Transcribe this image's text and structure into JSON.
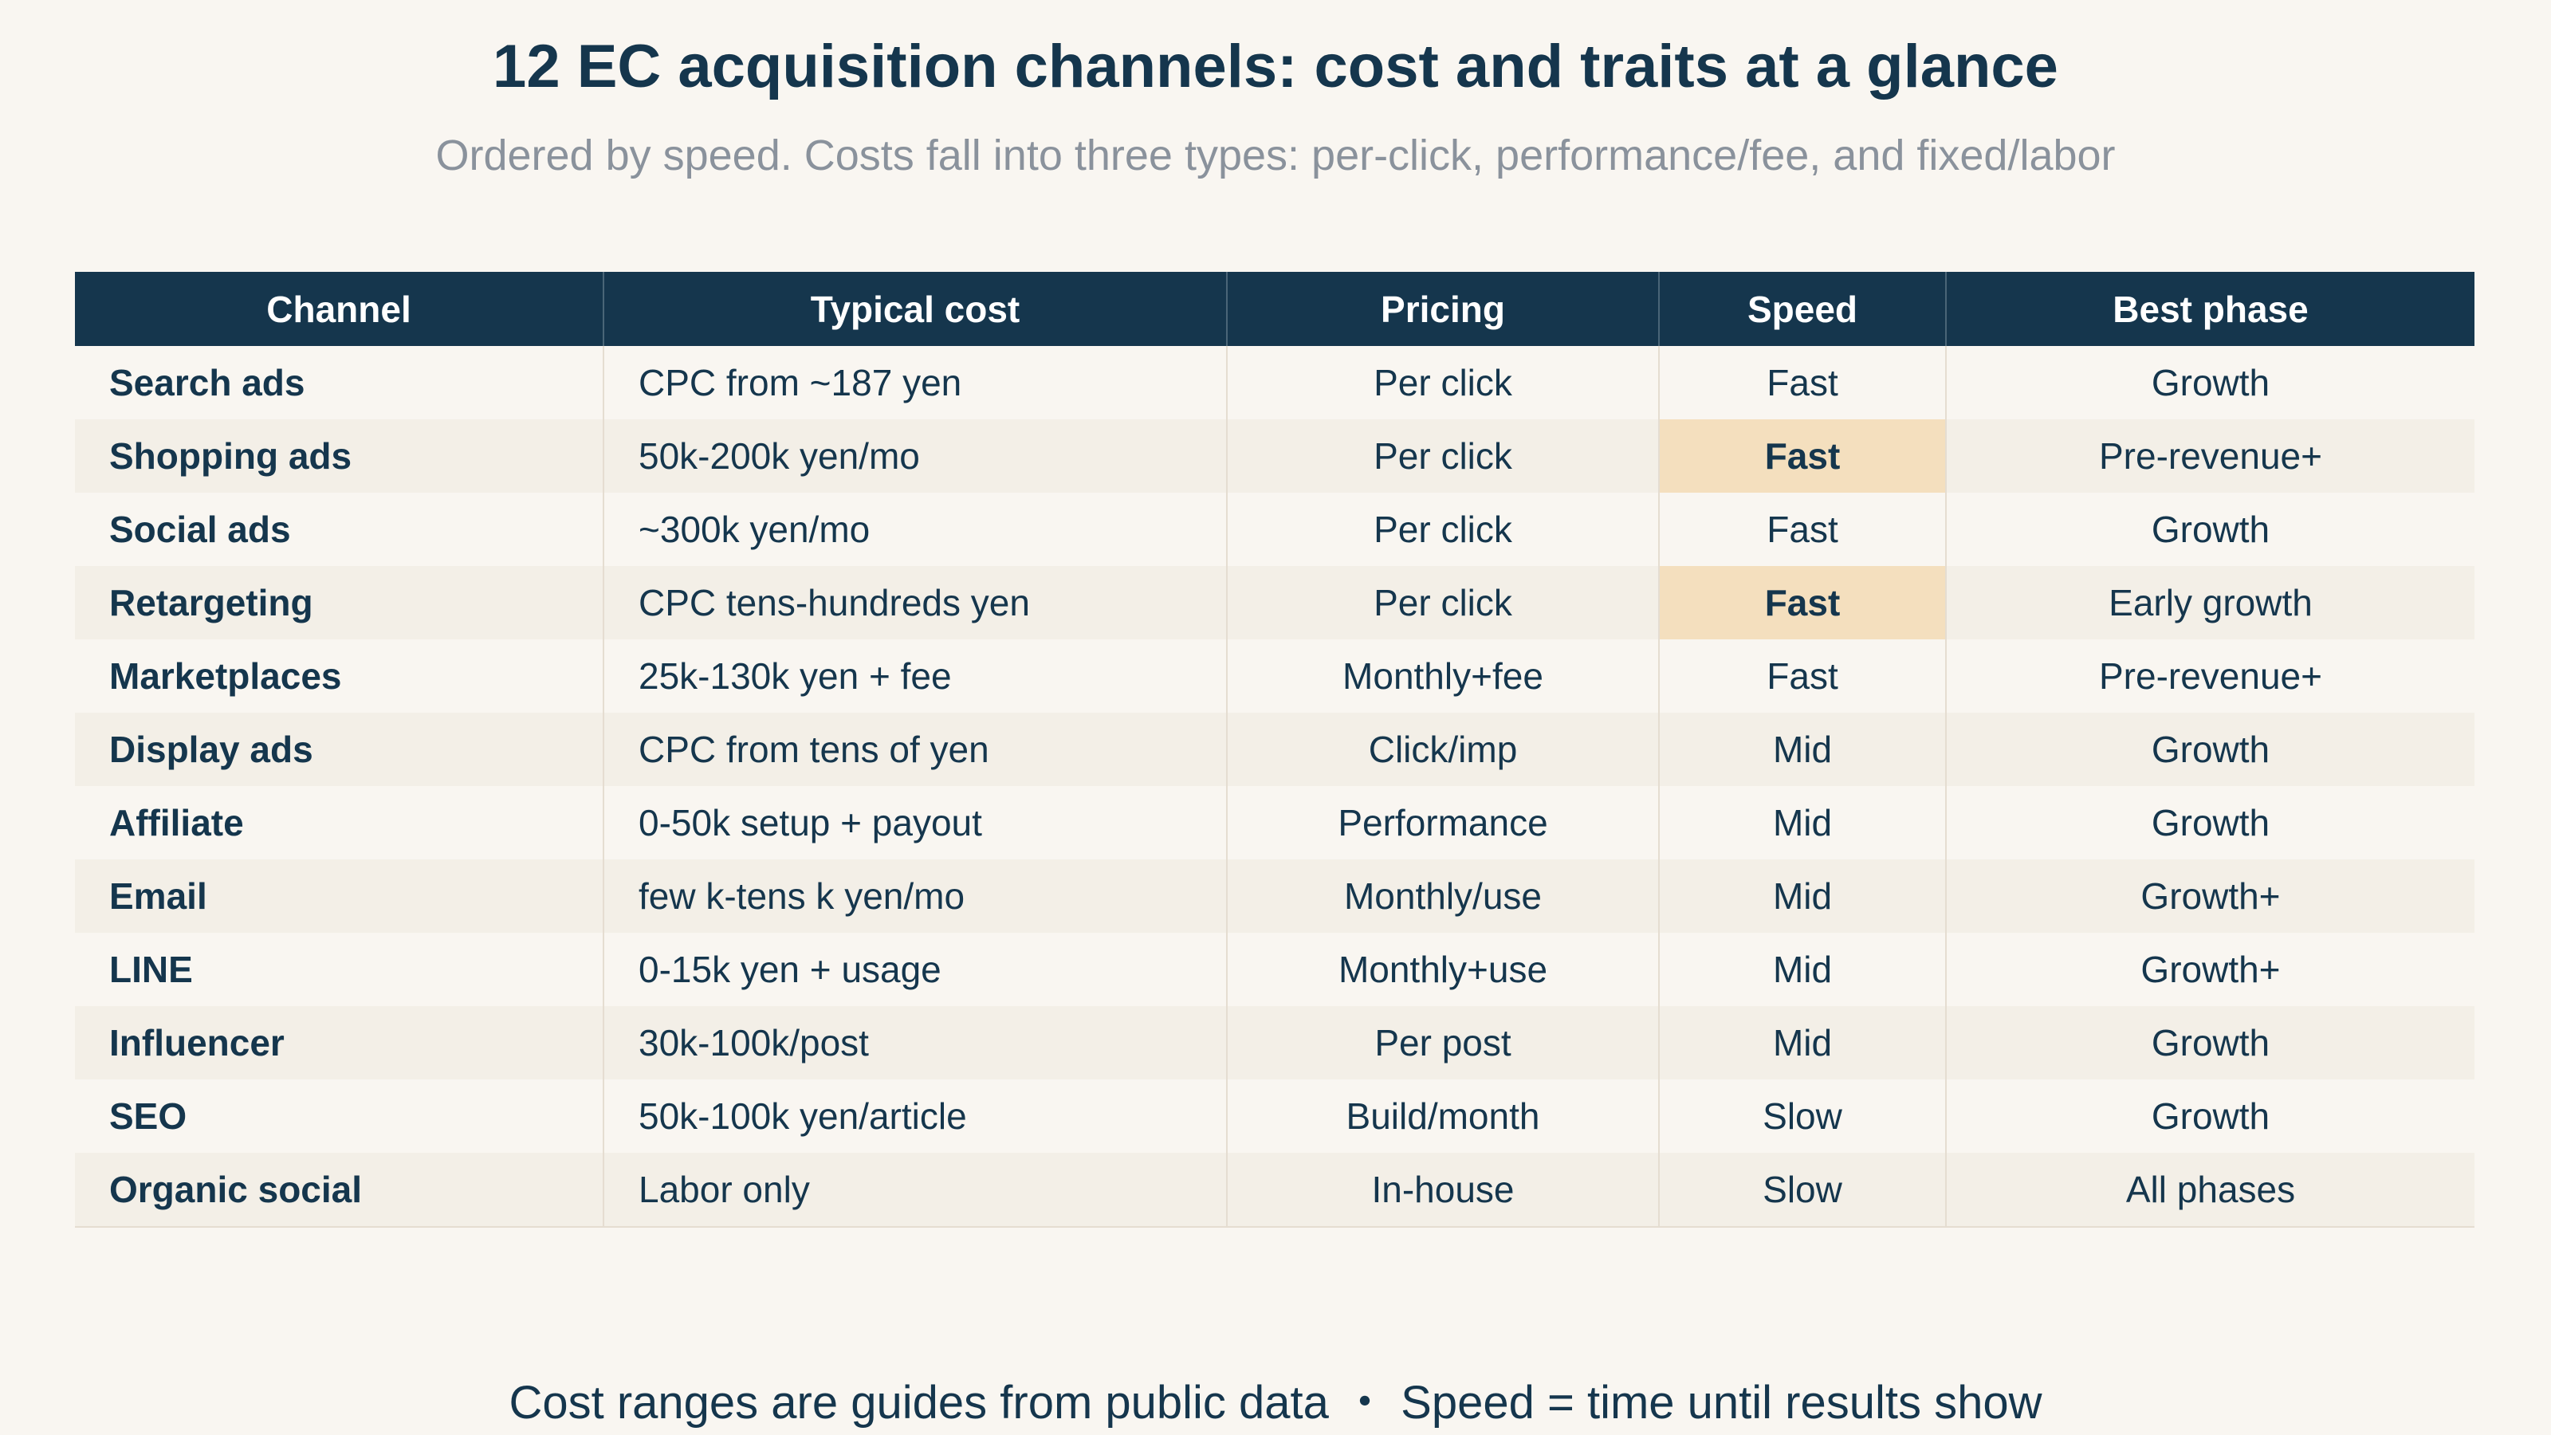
{
  "chart_data": {
    "type": "table",
    "title": "12 EC acquisition channels: cost and traits at a glance",
    "subtitle": "Ordered by speed. Costs fall into three types: per-click, performance/fee, and fixed/labor",
    "columns": [
      "Channel",
      "Typical cost",
      "Pricing",
      "Speed",
      "Best phase"
    ],
    "rows": [
      {
        "channel": "Search ads",
        "cost": "CPC from ~187 yen",
        "pricing": "Per click",
        "speed": "Fast",
        "phase": "Growth",
        "highlight": false
      },
      {
        "channel": "Shopping ads",
        "cost": "50k-200k yen/mo",
        "pricing": "Per click",
        "speed": "Fast",
        "phase": "Pre-revenue+",
        "highlight": true
      },
      {
        "channel": "Social ads",
        "cost": "~300k yen/mo",
        "pricing": "Per click",
        "speed": "Fast",
        "phase": "Growth",
        "highlight": false
      },
      {
        "channel": "Retargeting",
        "cost": "CPC tens-hundreds yen",
        "pricing": "Per click",
        "speed": "Fast",
        "phase": "Early growth",
        "highlight": true
      },
      {
        "channel": "Marketplaces",
        "cost": "25k-130k yen + fee",
        "pricing": "Monthly+fee",
        "speed": "Fast",
        "phase": "Pre-revenue+",
        "highlight": false
      },
      {
        "channel": "Display ads",
        "cost": "CPC from tens of yen",
        "pricing": "Click/imp",
        "speed": "Mid",
        "phase": "Growth",
        "highlight": false
      },
      {
        "channel": "Affiliate",
        "cost": "0-50k setup + payout",
        "pricing": "Performance",
        "speed": "Mid",
        "phase": "Growth",
        "highlight": false
      },
      {
        "channel": "Email",
        "cost": "few k-tens k yen/mo",
        "pricing": "Monthly/use",
        "speed": "Mid",
        "phase": "Growth+",
        "highlight": false
      },
      {
        "channel": "LINE",
        "cost": "0-15k yen + usage",
        "pricing": "Monthly+use",
        "speed": "Mid",
        "phase": "Growth+",
        "highlight": false
      },
      {
        "channel": "Influencer",
        "cost": "30k-100k/post",
        "pricing": "Per post",
        "speed": "Mid",
        "phase": "Growth",
        "highlight": false
      },
      {
        "channel": "SEO",
        "cost": "50k-100k yen/article",
        "pricing": "Build/month",
        "speed": "Slow",
        "phase": "Growth",
        "highlight": false
      },
      {
        "channel": "Organic social",
        "cost": "Labor only",
        "pricing": "In-house",
        "speed": "Slow",
        "phase": "All phases",
        "highlight": false
      }
    ],
    "footnote": "Cost ranges are guides from public data ・ Speed = time until results show",
    "colors": {
      "header_bg": "#15364d",
      "highlight_bg": "#f4dfbe",
      "row_alt_bg": "#f3efe7",
      "page_bg": "#f9f6f1",
      "subtitle_text": "#8a929c"
    }
  }
}
